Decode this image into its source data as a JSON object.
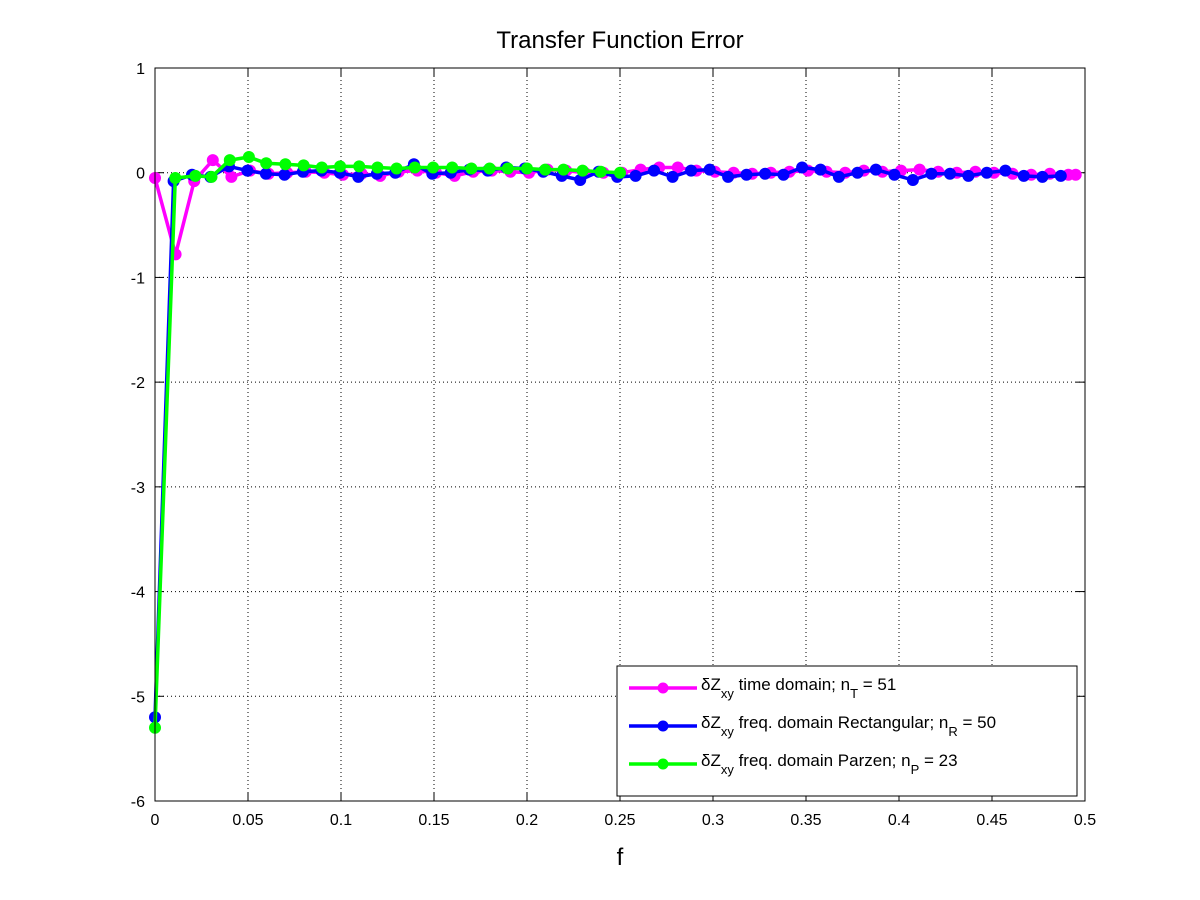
{
  "chart_data": {
    "type": "line",
    "title": "Transfer Function Error",
    "xlabel": "f",
    "ylabel": "",
    "xlim": [
      0,
      0.5
    ],
    "ylim": [
      -6,
      1
    ],
    "xticks": [
      0,
      0.05,
      0.1,
      0.15,
      0.2,
      0.25,
      0.3,
      0.35,
      0.4,
      0.45,
      0.5
    ],
    "xtick_labels": [
      "0",
      "0.05",
      "0.1",
      "0.15",
      "0.2",
      "0.25",
      "0.3",
      "0.35",
      "0.4",
      "0.45",
      "0.5"
    ],
    "yticks": [
      -6,
      -5,
      -4,
      -3,
      -2,
      -1,
      0,
      1
    ],
    "ytick_labels": [
      "-6",
      "-5",
      "-4",
      "-3",
      "-2",
      "-1",
      "0",
      "1"
    ],
    "grid": true,
    "legend_position": "bottom-right",
    "series": [
      {
        "name": "time domain",
        "legend": {
          "delta": "δ",
          "z": "Z",
          "sub": "xy",
          "desc": " time domain; n",
          "nsub": "T",
          "eq": " = 51"
        },
        "color": "#ff00ff",
        "x": [
          0,
          0.0111,
          0.0211,
          0.0311,
          0.0411,
          0.0511,
          0.0611,
          0.0711,
          0.0811,
          0.0911,
          0.1011,
          0.1111,
          0.1211,
          0.1311,
          0.1411,
          0.1511,
          0.1611,
          0.1711,
          0.1811,
          0.1911,
          0.2011,
          0.2111,
          0.2211,
          0.2311,
          0.2411,
          0.2511,
          0.2611,
          0.2711,
          0.2811,
          0.2911,
          0.3011,
          0.3111,
          0.3211,
          0.3311,
          0.3411,
          0.3511,
          0.3611,
          0.3711,
          0.3811,
          0.3911,
          0.4011,
          0.4111,
          0.4211,
          0.4311,
          0.4411,
          0.4511,
          0.4611,
          0.4711,
          0.4811,
          0.4911,
          0.495
        ],
        "y": [
          -0.05,
          -0.78,
          -0.08,
          0.12,
          -0.04,
          0.02,
          -0.01,
          0.0,
          0.01,
          0.0,
          -0.02,
          -0.01,
          -0.03,
          0.01,
          0.02,
          0.0,
          -0.03,
          0.01,
          0.02,
          0.01,
          0.0,
          0.03,
          0.02,
          0.0,
          0.0,
          0.0,
          0.03,
          0.05,
          0.05,
          0.02,
          0.01,
          0.0,
          -0.01,
          0.0,
          0.01,
          0.02,
          0.01,
          0.0,
          0.02,
          0.01,
          0.02,
          0.03,
          0.01,
          0.0,
          0.01,
          0.0,
          -0.01,
          -0.02,
          -0.01,
          -0.02,
          -0.02
        ]
      },
      {
        "name": "freq. domain Rectangular",
        "legend": {
          "delta": "δ",
          "z": "Z",
          "sub": "xy",
          "desc": " freq. domain Rectangular; n",
          "nsub": "R",
          "eq": " = 50"
        },
        "color": "#0000ff",
        "x": [
          0,
          0.01,
          0.0199,
          0.0298,
          0.0398,
          0.0497,
          0.0596,
          0.0696,
          0.0795,
          0.0895,
          0.0994,
          0.1093,
          0.1193,
          0.1292,
          0.1392,
          0.1491,
          0.159,
          0.169,
          0.1789,
          0.1888,
          0.1988,
          0.2087,
          0.2187,
          0.2286,
          0.2385,
          0.2485,
          0.2584,
          0.2683,
          0.2783,
          0.2882,
          0.2982,
          0.3081,
          0.318,
          0.328,
          0.3379,
          0.3479,
          0.3578,
          0.3677,
          0.3777,
          0.3876,
          0.3975,
          0.4075,
          0.4174,
          0.4274,
          0.4373,
          0.4472,
          0.4572,
          0.4671,
          0.4771,
          0.487
        ],
        "y": [
          -5.2,
          -0.08,
          -0.02,
          -0.04,
          0.06,
          0.02,
          -0.01,
          -0.02,
          0.01,
          0.02,
          0.0,
          -0.04,
          -0.01,
          0.0,
          0.08,
          -0.01,
          0.0,
          0.03,
          0.02,
          0.05,
          0.04,
          0.01,
          -0.03,
          -0.07,
          0.01,
          -0.04,
          -0.03,
          0.02,
          -0.04,
          0.02,
          0.03,
          -0.04,
          -0.02,
          -0.01,
          -0.02,
          0.05,
          0.03,
          -0.04,
          0.0,
          0.03,
          -0.02,
          -0.07,
          -0.01,
          -0.01,
          -0.03,
          0.0,
          0.02,
          -0.03,
          -0.04,
          -0.03
        ]
      },
      {
        "name": "freq. domain Parzen",
        "legend": {
          "delta": "δ",
          "z": "Z",
          "sub": "xy",
          "desc": " freq. domain Parzen; n",
          "nsub": "P",
          "eq": " = 23"
        },
        "color": "#00ff00",
        "x": [
          0,
          0.0109,
          0.0217,
          0.0304,
          0.0402,
          0.0505,
          0.0598,
          0.0701,
          0.0799,
          0.0897,
          0.0995,
          0.1098,
          0.1196,
          0.1299,
          0.1397,
          0.1495,
          0.1598,
          0.1701,
          0.1799,
          0.1897,
          0.2,
          0.2098,
          0.2196,
          0.2299,
          0.2397,
          0.25
        ],
        "y": [
          -5.3,
          -0.05,
          -0.03,
          -0.04,
          0.12,
          0.15,
          0.09,
          0.08,
          0.07,
          0.05,
          0.06,
          0.06,
          0.05,
          0.04,
          0.05,
          0.05,
          0.05,
          0.04,
          0.04,
          0.04,
          0.04,
          0.03,
          0.03,
          0.02,
          0.01,
          0.0
        ]
      }
    ]
  }
}
